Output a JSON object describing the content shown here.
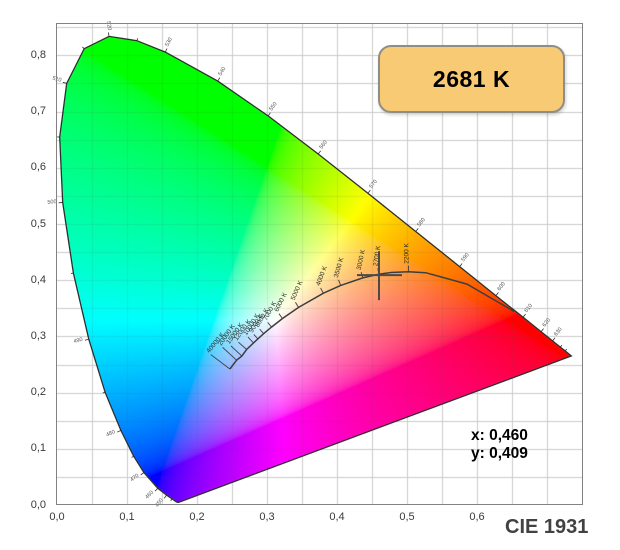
{
  "chart_data": {
    "type": "chromaticity-diagram",
    "title": "CIE 1931",
    "badge": {
      "text": "2681 K",
      "bg": "#f8ca74",
      "border": "#8e8e88"
    },
    "readout": {
      "x_text": "x: 0,460",
      "y_text": "y: 0,409"
    },
    "marker": {
      "x": 0.46,
      "y": 0.409
    },
    "x_axis": {
      "range": [
        0,
        0.75
      ],
      "grid_step": 0.05,
      "label_step": 0.1,
      "tick_labels": [
        "0,0",
        "0,1",
        "0,2",
        "0,3",
        "0,4",
        "0,5",
        "0,6"
      ]
    },
    "y_axis": {
      "range": [
        0,
        0.855
      ],
      "grid_step": 0.05,
      "label_step": 0.1,
      "tick_labels": [
        "0,0",
        "0,1",
        "0,2",
        "0,3",
        "0,4",
        "0,5",
        "0,6",
        "0,7",
        "0,8"
      ]
    },
    "colors": {
      "grid": "#cbcbcb",
      "plot_border": "#828282",
      "locus_outline": "#2e2e2e",
      "planckian": "#3e3e3e",
      "marker": "#4a4a4a",
      "wavelength_labels": "#555555",
      "temperature_labels": "#2d2d2d",
      "axis_labels": "#3a3a3a",
      "title": "#424242"
    },
    "spectral_locus": [
      [
        380,
        0.1741,
        0.005
      ],
      [
        390,
        0.1738,
        0.0049
      ],
      [
        400,
        0.1733,
        0.0048
      ],
      [
        410,
        0.1726,
        0.0048
      ],
      [
        420,
        0.1714,
        0.0051
      ],
      [
        430,
        0.1689,
        0.0069
      ],
      [
        440,
        0.1644,
        0.0109
      ],
      [
        450,
        0.1566,
        0.0177
      ],
      [
        460,
        0.144,
        0.0297
      ],
      [
        470,
        0.1241,
        0.0578
      ],
      [
        475,
        0.1096,
        0.0868
      ],
      [
        480,
        0.0913,
        0.1327
      ],
      [
        485,
        0.0687,
        0.2007
      ],
      [
        490,
        0.0454,
        0.295
      ],
      [
        495,
        0.0235,
        0.4127
      ],
      [
        500,
        0.0082,
        0.5384
      ],
      [
        505,
        0.0039,
        0.6548
      ],
      [
        510,
        0.0139,
        0.7502
      ],
      [
        515,
        0.0389,
        0.812
      ],
      [
        520,
        0.0743,
        0.8338
      ],
      [
        525,
        0.1142,
        0.8262
      ],
      [
        530,
        0.1547,
        0.8059
      ],
      [
        540,
        0.2296,
        0.7543
      ],
      [
        550,
        0.3016,
        0.6923
      ],
      [
        560,
        0.3731,
        0.6245
      ],
      [
        570,
        0.4441,
        0.5547
      ],
      [
        580,
        0.5125,
        0.4866
      ],
      [
        590,
        0.5752,
        0.4242
      ],
      [
        600,
        0.627,
        0.3725
      ],
      [
        610,
        0.6658,
        0.334
      ],
      [
        620,
        0.6915,
        0.3083
      ],
      [
        630,
        0.7079,
        0.292
      ],
      [
        640,
        0.719,
        0.2809
      ],
      [
        650,
        0.726,
        0.274
      ],
      [
        660,
        0.73,
        0.27
      ],
      [
        680,
        0.7334,
        0.2666
      ],
      [
        700,
        0.7347,
        0.2653
      ]
    ],
    "wavelength_tick_range": [
      440,
      650
    ],
    "wavelength_labels": [
      "450",
      "460",
      "470",
      "480",
      "490",
      "500",
      "510",
      "520",
      "530",
      "540",
      "550",
      "560",
      "570",
      "580",
      "590",
      "600",
      "610",
      "620",
      "630"
    ],
    "planckian_locus": [
      [
        40000,
        0.247,
        0.242,
        "40000 K"
      ],
      [
        20000,
        0.2565,
        0.2577,
        "20000 K"
      ],
      [
        15000,
        0.264,
        0.265,
        "15000 K"
      ],
      [
        12000,
        0.2709,
        0.2767,
        "12000 K"
      ],
      [
        10000,
        0.2807,
        0.2884,
        "10000 K"
      ],
      [
        9000,
        0.2869,
        0.2956,
        "9000 K"
      ],
      [
        8000,
        0.2952,
        0.3048,
        "8000 K"
      ],
      [
        7000,
        0.3064,
        0.3166,
        "7000 K"
      ],
      [
        6000,
        0.3221,
        0.3318,
        "6000 K"
      ],
      [
        5000,
        0.3451,
        0.3516,
        "5000 K"
      ],
      [
        4000,
        0.3805,
        0.3768,
        "4000 K"
      ],
      [
        3500,
        0.4053,
        0.3907,
        "3500 K"
      ],
      [
        3000,
        0.4369,
        0.4041,
        "3000 K"
      ],
      [
        2700,
        0.4599,
        0.4106,
        "2700 K"
      ],
      [
        2500,
        0.477,
        0.4137,
        null
      ],
      [
        2200,
        0.502,
        0.4152,
        "2200 K"
      ],
      [
        2000,
        0.5267,
        0.4133,
        null
      ],
      [
        1500,
        0.5857,
        0.3931,
        null
      ],
      [
        1000,
        0.6528,
        0.3444,
        null
      ]
    ]
  }
}
